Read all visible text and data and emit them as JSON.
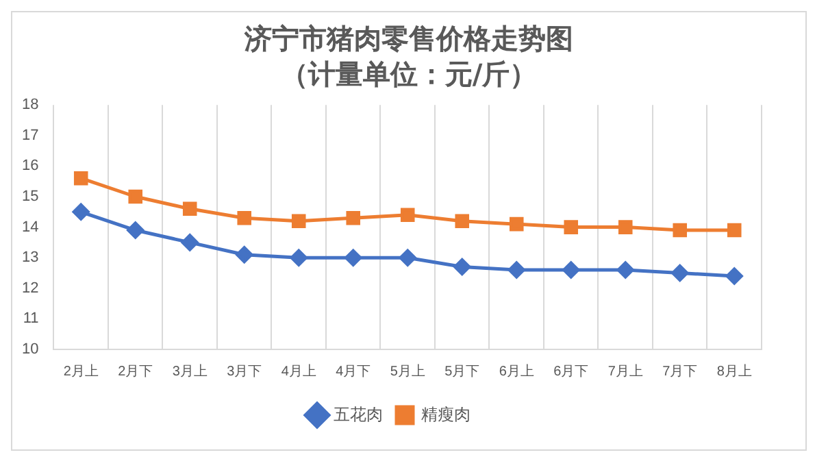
{
  "chart_data": {
    "type": "line",
    "title": "济宁市猪肉零售价格走势图",
    "subtitle": "（计量单位：元/斤）",
    "categories": [
      "2月上",
      "2月下",
      "3月上",
      "3月下",
      "4月上",
      "4月下",
      "5月上",
      "5月下",
      "6月上",
      "6月下",
      "7月上",
      "7月下",
      "8月上"
    ],
    "series": [
      {
        "name": "五花肉",
        "color": "#4472c4",
        "marker": "diamond",
        "values": [
          14.5,
          13.9,
          13.5,
          13.1,
          13.0,
          13.0,
          13.0,
          12.7,
          12.6,
          12.6,
          12.6,
          12.5,
          12.4
        ]
      },
      {
        "name": "精瘦肉",
        "color": "#ed7d31",
        "marker": "square",
        "values": [
          15.6,
          15.0,
          14.6,
          14.3,
          14.2,
          14.3,
          14.4,
          14.2,
          14.1,
          14.0,
          14.0,
          13.9,
          13.9
        ]
      }
    ],
    "ylim": [
      10,
      18
    ],
    "yticks": [
      10,
      11,
      12,
      13,
      14,
      15,
      16,
      17,
      18
    ],
    "grid": "x",
    "legend": "bottom"
  }
}
